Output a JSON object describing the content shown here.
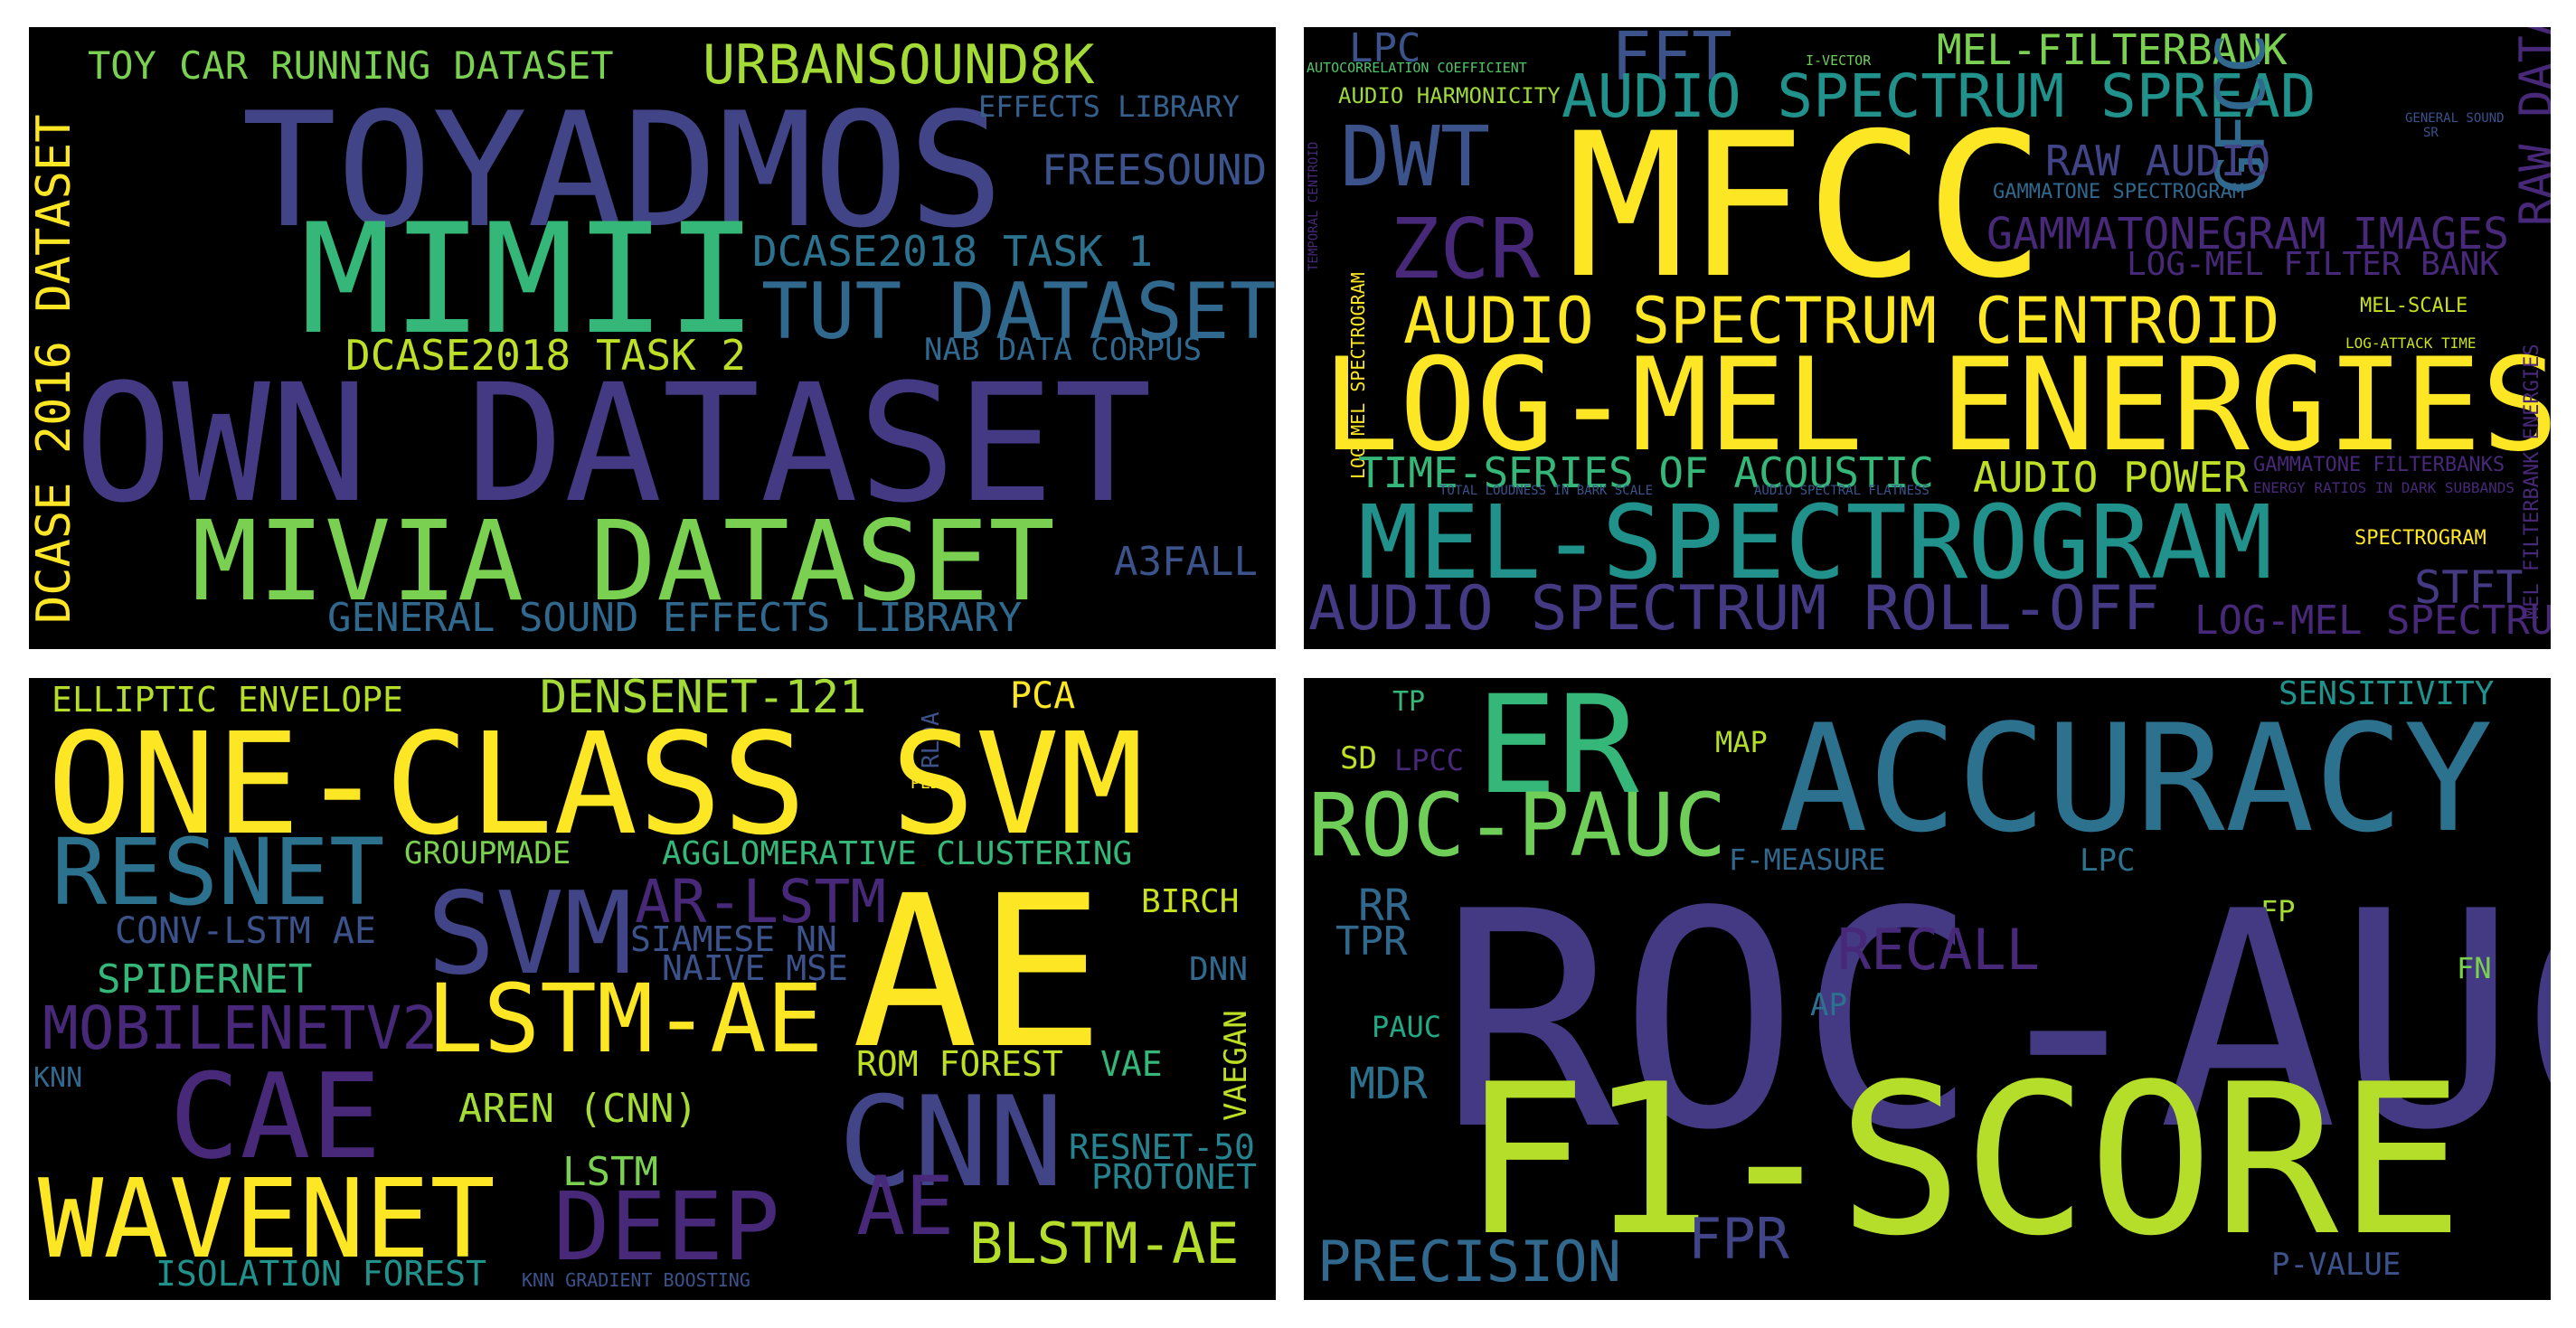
{
  "panels": {
    "datasets": {
      "words": [
        {
          "text": "TOY CAR RUNNING DATASET",
          "color": "#7ad151"
        },
        {
          "text": "URBANSOUND8K",
          "color": "#a5db36"
        },
        {
          "text": "TOYADMOS",
          "color": "#414487"
        },
        {
          "text": "EFFECTS LIBRARY",
          "color": "#355f8d"
        },
        {
          "text": "FREESOUND",
          "color": "#3b528b"
        },
        {
          "text": "MIMII",
          "color": "#35b779"
        },
        {
          "text": "DCASE2018 TASK 1",
          "color": "#2c728e"
        },
        {
          "text": "TUT DATASET",
          "color": "#31688e"
        },
        {
          "text": "DCASE 2016 DATASET",
          "color": "#fde725"
        },
        {
          "text": "DCASE2018 TASK 2",
          "color": "#bddf26"
        },
        {
          "text": "NAB DATA CORPUS",
          "color": "#31688e"
        },
        {
          "text": "OWN DATASET",
          "color": "#443983"
        },
        {
          "text": "MIVIA DATASET",
          "color": "#7ad151"
        },
        {
          "text": "A3FALL",
          "color": "#3b528b"
        },
        {
          "text": "GENERAL SOUND EFFECTS LIBRARY",
          "color": "#31688e"
        }
      ]
    },
    "features": {
      "words": [
        {
          "text": "LPC",
          "color": "#3b528b"
        },
        {
          "text": "FFT",
          "color": "#3b528b"
        },
        {
          "text": "MEL-FILTERBANK",
          "color": "#7ad151"
        },
        {
          "text": "I-VECTOR",
          "color": "#6ece58"
        },
        {
          "text": "AUTOCORRELATION COEFFICIENT",
          "color": "#52c569"
        },
        {
          "text": "AUDIO HARMONICITY",
          "color": "#9fda3a"
        },
        {
          "text": "AUDIO SPECTRUM SPREAD",
          "color": "#21918c"
        },
        {
          "text": "GFCC",
          "color": "#31688e"
        },
        {
          "text": "RAW DATA",
          "color": "#482878"
        },
        {
          "text": "GENERAL SOUND",
          "color": "#3b528b"
        },
        {
          "text": "SR",
          "color": "#3b528b"
        },
        {
          "text": "DWT",
          "color": "#3b528b"
        },
        {
          "text": "MFCC",
          "color": "#fde725"
        },
        {
          "text": "RAW AUDIO",
          "color": "#414487"
        },
        {
          "text": "TEMPORAL CENTROID",
          "color": "#482878"
        },
        {
          "text": "GAMMATONE SPECTROGRAM",
          "color": "#31688e"
        },
        {
          "text": "ZCR",
          "color": "#482878"
        },
        {
          "text": "GAMMATONEGRAM IMAGES",
          "color": "#482878"
        },
        {
          "text": "LOG-MEL FILTER BANK",
          "color": "#482878"
        },
        {
          "text": "AUDIO SPECTRUM CENTROID",
          "color": "#fde725"
        },
        {
          "text": "MEL-SCALE",
          "color": "#c8e020"
        },
        {
          "text": "LOG-ATTACK TIME",
          "color": "#c8e020"
        },
        {
          "text": "LOG-MEL SPECTROGRAM",
          "color": "#fde725"
        },
        {
          "text": "LOG-MEL ENERGIES",
          "color": "#fde725"
        },
        {
          "text": "TIME-SERIES OF ACOUSTIC",
          "color": "#35b779"
        },
        {
          "text": "AUDIO POWER",
          "color": "#bddf26"
        },
        {
          "text": "TOTAL LOUDNESS IN BARK SCALE",
          "color": "#3b528b"
        },
        {
          "text": "AUDIO SPECTRAL FLATNESS",
          "color": "#3b528b"
        },
        {
          "text": "GAMMATONE FILTERBANKS",
          "color": "#482878"
        },
        {
          "text": "ENERGY RATIOS IN DARK SUBBANDS",
          "color": "#482878"
        },
        {
          "text": "MEL FILTERBANK ENERGIES",
          "color": "#482878"
        },
        {
          "text": "MEL-SPECTROGRAM",
          "color": "#21918c"
        },
        {
          "text": "SPECTROGRAM",
          "color": "#fde725"
        },
        {
          "text": "AUDIO SPECTRUM ROLL-OFF",
          "color": "#443983"
        },
        {
          "text": "STFT",
          "color": "#443983"
        },
        {
          "text": "LOG-MEL SPECTRUM",
          "color": "#482878"
        }
      ]
    },
    "models": {
      "words": [
        {
          "text": "ELLIPTIC ENVELOPE",
          "color": "#b5de2b"
        },
        {
          "text": "DENSENET-121",
          "color": "#a5db36"
        },
        {
          "text": "PCA",
          "color": "#fde725"
        },
        {
          "text": "RLDA",
          "color": "#3b528b"
        },
        {
          "text": "PLDA",
          "color": "#fde725"
        },
        {
          "text": "ONE-CLASS SVM",
          "color": "#fde725"
        },
        {
          "text": "RESNET",
          "color": "#2c728e"
        },
        {
          "text": "GROUPMADE",
          "color": "#7ad151"
        },
        {
          "text": "AGGLOMERATIVE CLUSTERING",
          "color": "#35b779"
        },
        {
          "text": "AR-LSTM",
          "color": "#482878"
        },
        {
          "text": "SVM",
          "color": "#414487"
        },
        {
          "text": "AE",
          "color": "#fde725"
        },
        {
          "text": "BIRCH",
          "color": "#c8e020"
        },
        {
          "text": "CONV-LSTM AE",
          "color": "#3b528b"
        },
        {
          "text": "SIAMESE NN",
          "color": "#3b528b"
        },
        {
          "text": "NAIVE MSE",
          "color": "#3b528b"
        },
        {
          "text": "DNN",
          "color": "#31688e"
        },
        {
          "text": "SPIDERNET",
          "color": "#35b779"
        },
        {
          "text": "MOBILENETV2",
          "color": "#482878"
        },
        {
          "text": "LSTM-AE",
          "color": "#fde725"
        },
        {
          "text": "VAEGAN",
          "color": "#bddf26"
        },
        {
          "text": "ROM FOREST",
          "color": "#bddf26"
        },
        {
          "text": "VAE",
          "color": "#35b779"
        },
        {
          "text": "KNN",
          "color": "#31688e"
        },
        {
          "text": "CAE",
          "color": "#482878"
        },
        {
          "text": "AREN (CNN)",
          "color": "#a5db36"
        },
        {
          "text": "CNN",
          "color": "#414487"
        },
        {
          "text": "RESNET-50",
          "color": "#26828e"
        },
        {
          "text": "PROTONET",
          "color": "#26828e"
        },
        {
          "text": "LSTM",
          "color": "#7ad151"
        },
        {
          "text": "WAVENET",
          "color": "#fde725"
        },
        {
          "text": "DEEP",
          "color": "#482878"
        },
        {
          "text": "AE",
          "color": "#482878"
        },
        {
          "text": "BLSTM-AE",
          "color": "#b5de2b"
        },
        {
          "text": "ISOLATION FOREST",
          "color": "#21918c"
        },
        {
          "text": "KNN GRADIENT BOOSTING",
          "color": "#3b528b"
        }
      ]
    },
    "metrics": {
      "words": [
        {
          "text": "TP",
          "color": "#35b779"
        },
        {
          "text": "ER",
          "color": "#35b779"
        },
        {
          "text": "SENSITIVITY",
          "color": "#21918c"
        },
        {
          "text": "MAP",
          "color": "#b5de2b"
        },
        {
          "text": "ACCURACY",
          "color": "#2c728e"
        },
        {
          "text": "SD",
          "color": "#bddf26"
        },
        {
          "text": "LPCC",
          "color": "#482878"
        },
        {
          "text": "ROC-PAUC",
          "color": "#6ece58"
        },
        {
          "text": "F-MEASURE",
          "color": "#31688e"
        },
        {
          "text": "LPC",
          "color": "#2c728e"
        },
        {
          "text": "RR",
          "color": "#31688e"
        },
        {
          "text": "TPR",
          "color": "#31688e"
        },
        {
          "text": "FP",
          "color": "#a5db36"
        },
        {
          "text": "ROC-AUC",
          "color": "#443983"
        },
        {
          "text": "RECALL",
          "color": "#482878"
        },
        {
          "text": "FN",
          "color": "#7ad151"
        },
        {
          "text": "AP",
          "color": "#2c728e"
        },
        {
          "text": "PAUC",
          "color": "#22a884"
        },
        {
          "text": "MDR",
          "color": "#2c728e"
        },
        {
          "text": "F1-SCORE",
          "color": "#b5de2b"
        },
        {
          "text": "PRECISION",
          "color": "#31688e"
        },
        {
          "text": "FPR",
          "color": "#414487"
        },
        {
          "text": "P-VALUE",
          "color": "#3b528b"
        }
      ]
    }
  }
}
